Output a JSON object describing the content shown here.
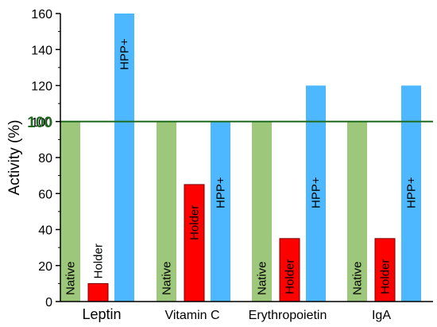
{
  "chart_data": {
    "type": "bar",
    "categories": [
      "Leptin",
      "Vitamin C",
      "Erythropoietin",
      "IgA"
    ],
    "series": [
      {
        "name": "Native",
        "values": [
          100,
          100,
          100,
          100
        ]
      },
      {
        "name": "Holder",
        "values": [
          10,
          65,
          35,
          35
        ]
      },
      {
        "name": "HPP+",
        "values": [
          160,
          100,
          120,
          120
        ]
      }
    ],
    "title": "",
    "xlabel": "",
    "ylabel": "Activity (%)",
    "ylim": [
      0,
      160
    ],
    "yticks": [
      0,
      20,
      40,
      60,
      80,
      100,
      120,
      140,
      160
    ],
    "reference_line": {
      "value": 100,
      "label": "100"
    },
    "grid": false,
    "legend": "none",
    "colors": {
      "Native": "#9dc77a",
      "Holder": "#ff0000",
      "HPP+": "#4db8ff",
      "reference_line": "#1f6b1f",
      "axis": "#000000"
    }
  }
}
